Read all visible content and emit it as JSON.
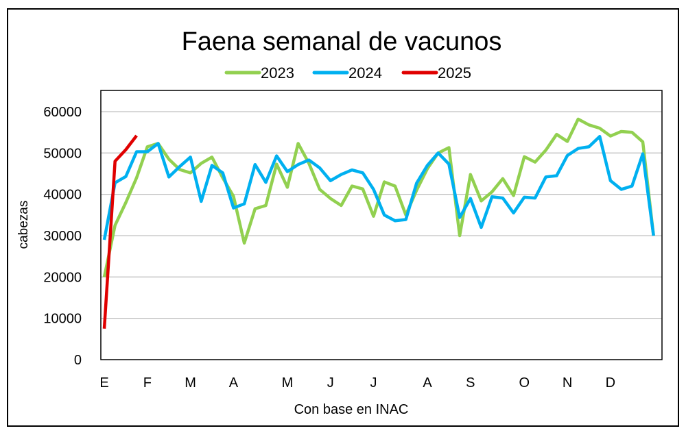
{
  "chart_data": {
    "type": "line",
    "title": "Faena semanal de vacunos",
    "xlabel": "Con base en INAC",
    "ylabel": "cabezas",
    "ylim": [
      0,
      60000
    ],
    "yticks": [
      0,
      10000,
      20000,
      30000,
      40000,
      50000,
      60000
    ],
    "xtick_labels": [
      {
        "label": "E",
        "week": 1
      },
      {
        "label": "F",
        "week": 5
      },
      {
        "label": "M",
        "week": 9
      },
      {
        "label": "A",
        "week": 13
      },
      {
        "label": "M",
        "week": 18
      },
      {
        "label": "J",
        "week": 22
      },
      {
        "label": "J",
        "week": 26
      },
      {
        "label": "A",
        "week": 31
      },
      {
        "label": "S",
        "week": 35
      },
      {
        "label": "O",
        "week": 40
      },
      {
        "label": "N",
        "week": 44
      },
      {
        "label": "D",
        "week": 48
      }
    ],
    "grid": true,
    "legend_position": "top",
    "series": [
      {
        "name": "2023",
        "color": "#92d050",
        "values": [
          20000,
          32500,
          38000,
          44000,
          51500,
          52300,
          48500,
          46000,
          45200,
          47500,
          49000,
          44000,
          39500,
          28200,
          36500,
          37300,
          47300,
          41700,
          52300,
          47500,
          41200,
          39000,
          37300,
          42000,
          41300,
          34700,
          43000,
          42000,
          35000,
          41000,
          46200,
          50000,
          51300,
          30000,
          44800,
          38400,
          40600,
          43800,
          39700,
          49100,
          47800,
          50700,
          54500,
          52800,
          58200,
          56800,
          56000,
          54100,
          55200,
          55000,
          52700,
          30000
        ]
      },
      {
        "name": "2024",
        "color": "#00b0f0",
        "values": [
          29000,
          42800,
          44300,
          50300,
          50300,
          52300,
          44200,
          46700,
          49000,
          38300,
          47000,
          45200,
          36700,
          37700,
          47200,
          42900,
          49300,
          45500,
          47200,
          48300,
          46400,
          43300,
          44800,
          45900,
          45200,
          41200,
          35000,
          33600,
          33900,
          42700,
          47000,
          50000,
          47300,
          34400,
          39000,
          32000,
          39400,
          39100,
          35500,
          39300,
          39100,
          44200,
          44500,
          49400,
          51100,
          51500,
          54000,
          43300,
          41200,
          42000,
          49800,
          30000
        ]
      },
      {
        "name": "2025",
        "color": "#e00000",
        "values": [
          7500,
          48000,
          50800,
          54200
        ]
      }
    ]
  }
}
